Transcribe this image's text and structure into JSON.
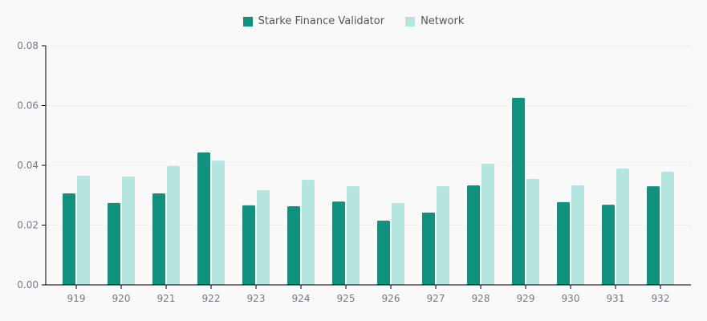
{
  "chart_data": {
    "type": "bar",
    "title": "",
    "xlabel": "",
    "ylabel": "",
    "ylim": [
      0,
      0.08
    ],
    "yticks": [
      "0.00",
      "0.02",
      "0.04",
      "0.06",
      "0.08"
    ],
    "grid": true,
    "legend_position": "top-center",
    "categories": [
      "919",
      "920",
      "921",
      "922",
      "923",
      "924",
      "925",
      "926",
      "927",
      "928",
      "929",
      "930",
      "931",
      "932"
    ],
    "series": [
      {
        "name": "Starke Finance Validator",
        "color": "#11927f",
        "values": [
          0.0306,
          0.0274,
          0.0306,
          0.0443,
          0.0266,
          0.0263,
          0.0279,
          0.0215,
          0.0242,
          0.0333,
          0.0626,
          0.0277,
          0.0268,
          0.033
        ]
      },
      {
        "name": "Network",
        "color": "#b4e5df",
        "values": [
          0.0365,
          0.0362,
          0.0397,
          0.0416,
          0.0317,
          0.0352,
          0.033,
          0.0274,
          0.033,
          0.0405,
          0.0354,
          0.0333,
          0.0389,
          0.0379
        ]
      }
    ]
  }
}
